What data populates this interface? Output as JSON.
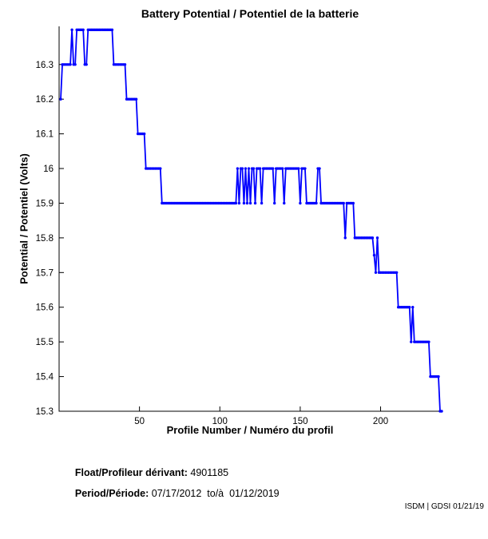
{
  "chart_data": {
    "type": "line",
    "title": "Battery Potential / Potentiel de la batterie",
    "xlabel": "Profile Number / Numéro du profil",
    "ylabel": "Potential / Potentiel (Volts)",
    "xlim": [
      0,
      238
    ],
    "ylim": [
      15.3,
      16.41
    ],
    "xticks": [
      50,
      100,
      150,
      200
    ],
    "yticks": [
      15.3,
      15.4,
      15.5,
      15.6,
      15.7,
      15.8,
      15.9,
      16.0,
      16.1,
      16.2,
      16.3
    ],
    "ytick_labels": [
      "15.3",
      "15.4",
      "15.5",
      "15.6",
      "15.7",
      "15.8",
      "15.9",
      "16",
      "16.1",
      "16.2",
      "16.3"
    ],
    "grid": false,
    "legend": "none",
    "line_color": "#0000FF",
    "axis_color": "#000000",
    "marker": "dot",
    "series": [
      {
        "name": "battery-potential-volts",
        "x_start": 1,
        "values": [
          16.2,
          16.3,
          16.3,
          16.3,
          16.3,
          16.3,
          16.3,
          16.4,
          16.3,
          16.3,
          16.4,
          16.4,
          16.4,
          16.4,
          16.4,
          16.3,
          16.3,
          16.4,
          16.4,
          16.4,
          16.4,
          16.4,
          16.4,
          16.4,
          16.4,
          16.4,
          16.4,
          16.4,
          16.4,
          16.4,
          16.4,
          16.4,
          16.4,
          16.3,
          16.3,
          16.3,
          16.3,
          16.3,
          16.3,
          16.3,
          16.3,
          16.2,
          16.2,
          16.2,
          16.2,
          16.2,
          16.2,
          16.2,
          16.1,
          16.1,
          16.1,
          16.1,
          16.1,
          16.0,
          16.0,
          16.0,
          16.0,
          16.0,
          16.0,
          16.0,
          16.0,
          16.0,
          16.0,
          15.9,
          15.9,
          15.9,
          15.9,
          15.9,
          15.9,
          15.9,
          15.9,
          15.9,
          15.9,
          15.9,
          15.9,
          15.9,
          15.9,
          15.9,
          15.9,
          15.9,
          15.9,
          15.9,
          15.9,
          15.9,
          15.9,
          15.9,
          15.9,
          15.9,
          15.9,
          15.9,
          15.9,
          15.9,
          15.9,
          15.9,
          15.9,
          15.9,
          15.9,
          15.9,
          15.9,
          15.9,
          15.9,
          15.9,
          15.9,
          15.9,
          15.9,
          15.9,
          15.9,
          15.9,
          15.9,
          15.9,
          16.0,
          15.9,
          16.0,
          16.0,
          15.9,
          16.0,
          15.9,
          16.0,
          15.9,
          16.0,
          16.0,
          15.9,
          16.0,
          16.0,
          16.0,
          15.9,
          16.0,
          16.0,
          16.0,
          16.0,
          16.0,
          16.0,
          16.0,
          15.9,
          16.0,
          16.0,
          16.0,
          16.0,
          16.0,
          15.9,
          16.0,
          16.0,
          16.0,
          16.0,
          16.0,
          16.0,
          16.0,
          16.0,
          16.0,
          15.9,
          16.0,
          16.0,
          16.0,
          15.9,
          15.9,
          15.9,
          15.9,
          15.9,
          15.9,
          15.9,
          16.0,
          16.0,
          15.9,
          15.9,
          15.9,
          15.9,
          15.9,
          15.9,
          15.9,
          15.9,
          15.9,
          15.9,
          15.9,
          15.9,
          15.9,
          15.9,
          15.9,
          15.8,
          15.9,
          15.9,
          15.9,
          15.9,
          15.9,
          15.8,
          15.8,
          15.8,
          15.8,
          15.8,
          15.8,
          15.8,
          15.8,
          15.8,
          15.8,
          15.8,
          15.8,
          15.75,
          15.7,
          15.8,
          15.7,
          15.7,
          15.7,
          15.7,
          15.7,
          15.7,
          15.7,
          15.7,
          15.7,
          15.7,
          15.7,
          15.7,
          15.6,
          15.6,
          15.6,
          15.6,
          15.6,
          15.6,
          15.6,
          15.6,
          15.5,
          15.6,
          15.5,
          15.5,
          15.5,
          15.5,
          15.5,
          15.5,
          15.5,
          15.5,
          15.5,
          15.5,
          15.4,
          15.4,
          15.4,
          15.4,
          15.4,
          15.4,
          15.3,
          15.3
        ]
      }
    ]
  },
  "footer": {
    "float_label": "Float/Profileur dérivant:",
    "float_value": " 4901185",
    "period_label": "Period/Période:",
    "period_value": " 07/17/2012  to/à  01/12/2019",
    "stamp": "ISDM | GDSI 01/21/19"
  }
}
